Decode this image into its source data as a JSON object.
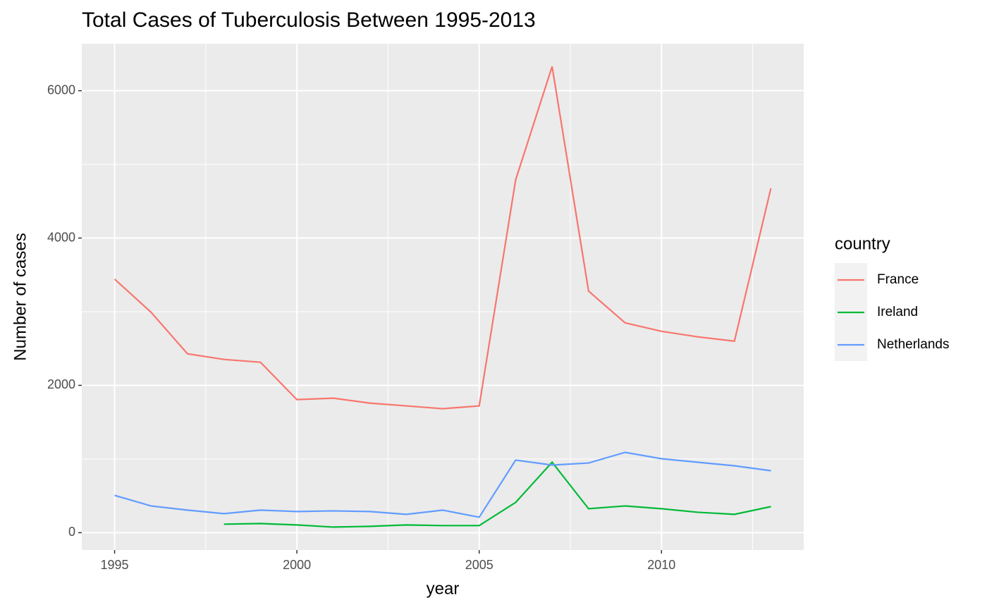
{
  "chart_data": {
    "type": "line",
    "title": "Total Cases of Tuberculosis Between 1995-2013",
    "x_label": "year",
    "y_label": "Number of cases",
    "x": [
      1995,
      1996,
      1997,
      1998,
      1999,
      2000,
      2001,
      2002,
      2003,
      2004,
      2005,
      2006,
      2007,
      2008,
      2009,
      2010,
      2011,
      2012,
      2013
    ],
    "series": [
      {
        "name": "France",
        "color": "#F8766D",
        "values": [
          3442,
          2992,
          2428,
          2352,
          2314,
          1807,
          1826,
          1759,
          1721,
          1683,
          1721,
          4790,
          6329,
          3279,
          2849,
          2734,
          2658,
          2600,
          4675
        ]
      },
      {
        "name": "Ireland",
        "color": "#00BA38",
        "values": [
          null,
          null,
          null,
          115,
          124,
          105,
          76,
          86,
          105,
          96,
          96,
          411,
          956,
          325,
          363,
          325,
          277,
          249,
          354
        ]
      },
      {
        "name": "Netherlands",
        "color": "#619CFF",
        "values": [
          507,
          363,
          306,
          258,
          306,
          287,
          296,
          287,
          249,
          306,
          210,
          985,
          918,
          946,
          1090,
          1004,
          956,
          908,
          841
        ]
      }
    ],
    "legend_title": "country",
    "xlim": [
      1994.1,
      2013.9
    ],
    "xticks": [
      1995,
      2000,
      2005,
      2010
    ],
    "x_minor_ticks": [
      1997.5,
      2002.5,
      2007.5,
      2012.5
    ],
    "ylim": [
      -236,
      6638
    ],
    "yticks": [
      0,
      2000,
      4000,
      6000
    ],
    "y_minor_ticks": [
      1000,
      3000,
      5000
    ],
    "grid": true,
    "legend_position": "right"
  }
}
